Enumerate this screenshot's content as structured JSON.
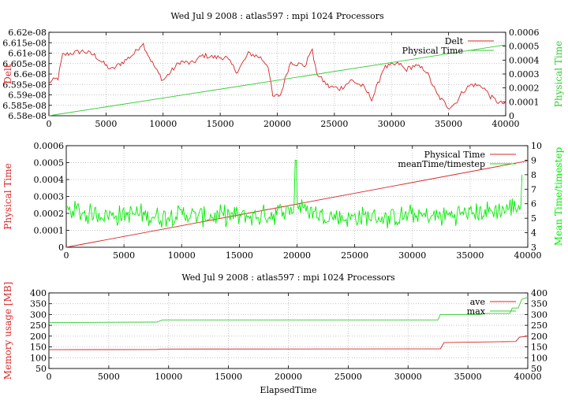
{
  "chart_data": [
    {
      "type": "line",
      "title": "Wed Jul 9 2008 : atlas597 : mpi 1024 Processors",
      "ylabel": "Delt",
      "y2label": "Physical Time",
      "xlim": [
        0,
        40000
      ],
      "ylim": [
        6.58e-08,
        6.62e-08
      ],
      "y2lim": [
        0,
        0.0006
      ],
      "x_ticks": [
        "0",
        "5000",
        "10000",
        "15000",
        "20000",
        "25000",
        "30000",
        "35000",
        "40000"
      ],
      "y_ticks": [
        "6.58e-08",
        "6.585e-08",
        "6.59e-08",
        "6.595e-08",
        "6.6e-08",
        "6.605e-08",
        "6.61e-08",
        "6.615e-08",
        "6.62e-08"
      ],
      "y2_ticks": [
        "0",
        "0.0001",
        "0.0002",
        "0.0003",
        "0.0004",
        "0.0005",
        "0.0006"
      ],
      "grid": true,
      "legend_position": "top-right",
      "series": [
        {
          "name": "Delt",
          "axis": "left",
          "color": "#d62728",
          "x": [
            0,
            800,
            1200,
            2000,
            3000,
            4000,
            5000,
            5500,
            6000,
            6800,
            7500,
            8200,
            8800,
            9500,
            10000,
            10500,
            11500,
            12500,
            13500,
            14500,
            15500,
            16500,
            17500,
            18500,
            19200,
            19600,
            20300,
            20800,
            21200,
            21600,
            22500,
            23000,
            23400,
            23800,
            24500,
            25500,
            26500,
            27500,
            28300,
            28800,
            29300,
            30000,
            30700,
            31200,
            32000,
            33000,
            34000,
            35000,
            35600,
            36300,
            37000,
            38000,
            38700,
            39500,
            40000
          ],
          "y": [
            6.596e-08,
            6.598e-08,
            6.609e-08,
            6.61e-08,
            6.611e-08,
            6.609e-08,
            6.604e-08,
            6.602e-08,
            6.604e-08,
            6.607e-08,
            6.61e-08,
            6.615e-08,
            6.608e-08,
            6.601e-08,
            6.597e-08,
            6.6e-08,
            6.606e-08,
            6.605e-08,
            6.609e-08,
            6.608e-08,
            6.608e-08,
            6.601e-08,
            6.61e-08,
            6.608e-08,
            6.604e-08,
            6.589e-08,
            6.59e-08,
            6.6e-08,
            6.606e-08,
            6.605e-08,
            6.604e-08,
            6.613e-08,
            6.601e-08,
            6.598e-08,
            6.594e-08,
            6.593e-08,
            6.597e-08,
            6.594e-08,
            6.588e-08,
            6.595e-08,
            6.603e-08,
            6.604e-08,
            6.605e-08,
            6.602e-08,
            6.604e-08,
            6.602e-08,
            6.59e-08,
            6.584e-08,
            6.586e-08,
            6.592e-08,
            6.595e-08,
            6.594e-08,
            6.589e-08,
            6.586e-08,
            6.586e-08
          ]
        },
        {
          "name": "Physical Time",
          "axis": "right",
          "color": "#33cc33",
          "x": [
            0,
            40000
          ],
          "y": [
            0,
            0.00051
          ]
        }
      ]
    },
    {
      "type": "line",
      "title": "",
      "ylabel": "Physical Time",
      "y2label": "Mean Time/timestep",
      "xlim": [
        0,
        40000
      ],
      "ylim": [
        0,
        0.0006
      ],
      "y2lim": [
        3,
        10
      ],
      "x_ticks": [
        "0",
        "5000",
        "10000",
        "15000",
        "20000",
        "25000",
        "30000",
        "35000",
        "40000"
      ],
      "y_ticks": [
        "0",
        "0.0001",
        "0.0002",
        "0.0003",
        "0.0004",
        "0.0005",
        "0.0006"
      ],
      "y2_ticks": [
        "3",
        "4",
        "5",
        "6",
        "7",
        "8",
        "9",
        "10"
      ],
      "grid": true,
      "legend_position": "top-right",
      "series": [
        {
          "name": "Physical Time",
          "axis": "left",
          "color": "#d62728",
          "x": [
            0,
            40000
          ],
          "y": [
            0,
            0.00051
          ]
        },
        {
          "name": "meanTime/timestep",
          "axis": "right",
          "color": "#00ee00",
          "x": [
            0,
            2000,
            4000,
            6000,
            8000,
            10000,
            12000,
            14000,
            16000,
            18000,
            19800,
            20000,
            22000,
            24000,
            26000,
            28000,
            30000,
            32000,
            34000,
            36000,
            38000,
            39500
          ],
          "y": [
            5.6,
            5.3,
            5.2,
            5.3,
            5.1,
            5.3,
            5.1,
            5.2,
            5.1,
            5.3,
            5.7,
            5.9,
            5.2,
            5.0,
            5.1,
            5.0,
            5.2,
            5.1,
            5.3,
            5.4,
            5.6,
            5.9
          ],
          "spikes": [
            {
              "x": 19900,
              "y": 9.0
            },
            {
              "x": 39500,
              "y": 8.0
            }
          ],
          "noise_amplitude": 0.6
        }
      ]
    },
    {
      "type": "line",
      "title": "Wed Jul 9 2008 : atlas597 : mpi 1024 Processors",
      "xlabel": "ElapsedTime",
      "ylabel": "Memory usage [MB]",
      "xlim": [
        0,
        40000
      ],
      "ylim": [
        50,
        400
      ],
      "y2lim": [
        50,
        400
      ],
      "x_ticks": [
        "0",
        "5000",
        "10000",
        "15000",
        "20000",
        "25000",
        "30000",
        "35000",
        "40000"
      ],
      "y_ticks": [
        "50",
        "100",
        "150",
        "200",
        "250",
        "300",
        "350",
        "400"
      ],
      "y2_ticks": [
        "50",
        "100",
        "150",
        "200",
        "250",
        "300",
        "350",
        "400"
      ],
      "grid": true,
      "legend_position": "top-right",
      "series": [
        {
          "name": "ave",
          "color": "#d62728",
          "x": [
            0,
            9000,
            9400,
            32700,
            33000,
            39000,
            39300,
            40000
          ],
          "y": [
            137,
            138,
            140,
            141,
            170,
            175,
            195,
            200
          ]
        },
        {
          "name": "max",
          "color": "#33cc33",
          "x": [
            0,
            9000,
            9500,
            32500,
            32700,
            36000,
            36500,
            38500,
            38700,
            39200,
            39500,
            40000
          ],
          "y": [
            263,
            265,
            275,
            275,
            300,
            300,
            305,
            305,
            330,
            330,
            370,
            380
          ]
        }
      ]
    }
  ]
}
